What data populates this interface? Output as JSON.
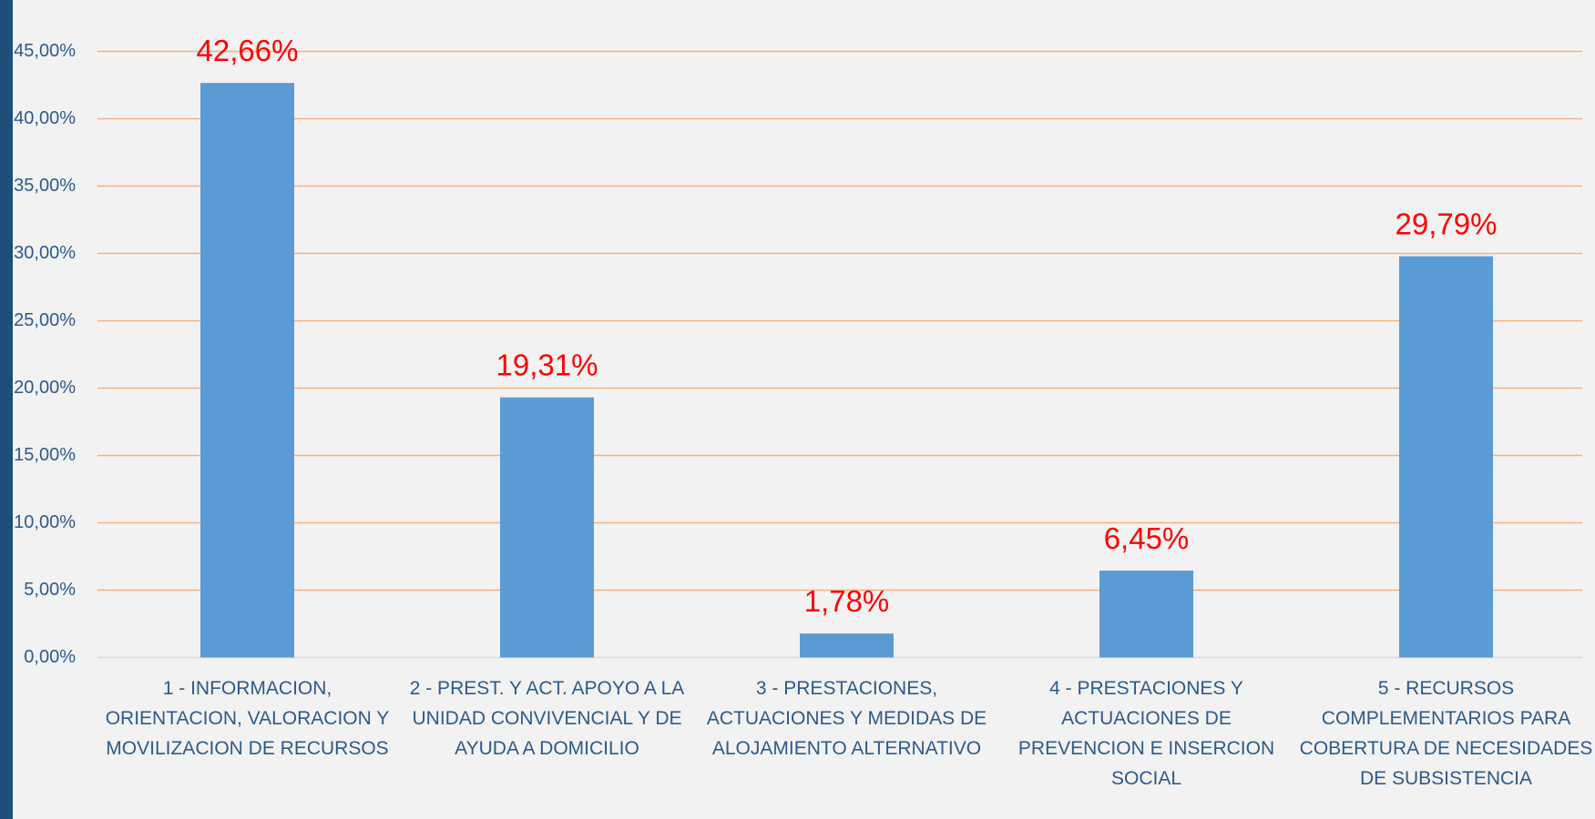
{
  "chart_data": {
    "type": "bar",
    "categories": [
      "1 - INFORMACION, ORIENTACION, VALORACION Y MOVILIZACION DE RECURSOS",
      "2 - PREST. Y ACT. APOYO A LA UNIDAD CONVIVENCIAL Y DE AYUDA A DOMICILIO",
      "3 - PRESTACIONES, ACTUACIONES Y MEDIDAS DE ALOJAMIENTO ALTERNATIVO",
      "4 - PRESTACIONES Y ACTUACIONES DE PREVENCION E INSERCION SOCIAL",
      "5 - RECURSOS COMPLEMENTARIOS PARA COBERTURA DE NECESIDADES DE SUBSISTENCIA"
    ],
    "values": [
      42.66,
      19.31,
      1.78,
      6.45,
      29.79
    ],
    "value_labels": [
      "42,66%",
      "19,31%",
      "1,78%",
      "6,45%",
      "29,79%"
    ],
    "color": "#5b9bd5",
    "label_color": "#ff0000",
    "grid_color": "#f4b183",
    "ylim": [
      0,
      45
    ],
    "yticks": [
      {
        "value": 0,
        "label": "0,00%"
      },
      {
        "value": 5,
        "label": "5,00%"
      },
      {
        "value": 10,
        "label": "10,00%"
      },
      {
        "value": 15,
        "label": "15,00%"
      },
      {
        "value": 20,
        "label": "20,00%"
      },
      {
        "value": 25,
        "label": "25,00%"
      },
      {
        "value": 30,
        "label": "30,00%"
      },
      {
        "value": 35,
        "label": "35,00%"
      },
      {
        "value": 40,
        "label": "40,00%"
      },
      {
        "value": 45,
        "label": "45,00%"
      }
    ],
    "grid": true
  }
}
